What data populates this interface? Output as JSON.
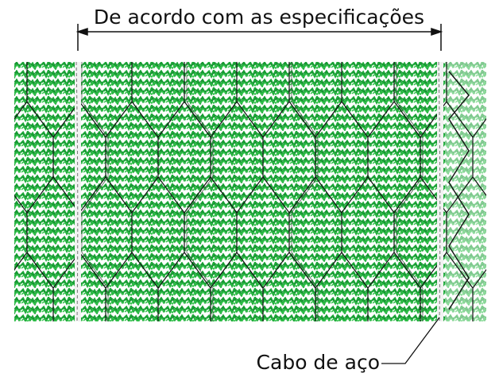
{
  "dimension": {
    "label": "De acordo com as especificações"
  },
  "callout": {
    "label": "Cabo de aço"
  }
}
